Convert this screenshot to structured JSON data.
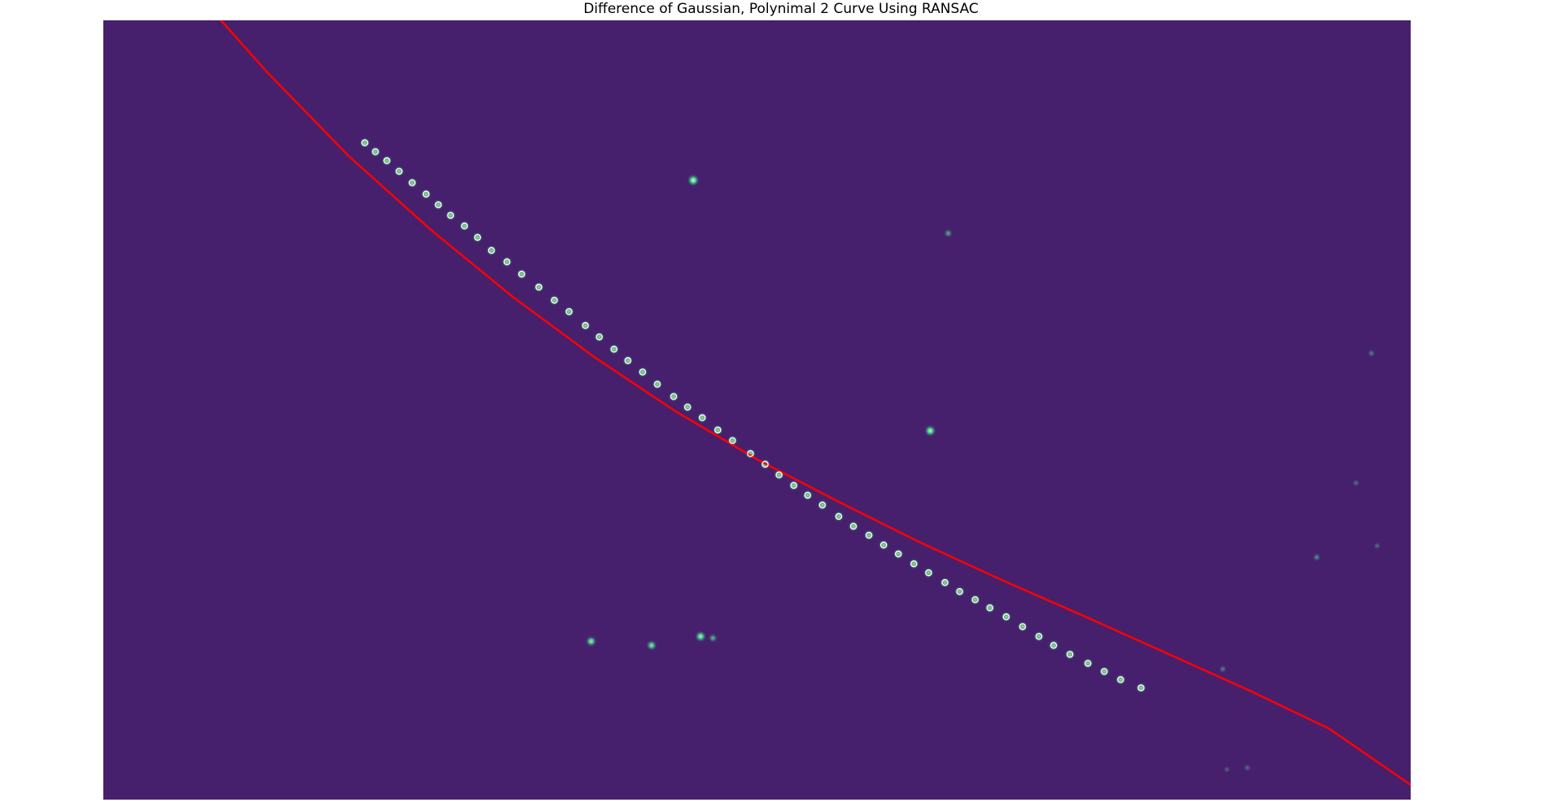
{
  "chart_data": {
    "type": "scatter",
    "title": "Difference of Gaussian, Polynimal 2 Curve Using RANSAC",
    "xlabel": "",
    "ylabel": "",
    "axes_visible": false,
    "grid": false,
    "legend": "none",
    "background_image": "dog-filtered-image-viridis",
    "xlim": [
      0,
      1600
    ],
    "ylim": [
      955,
      0
    ],
    "colors": {
      "background": "#46206c",
      "fit_curve": "#ff0000",
      "inlier_marker": "#ffffff",
      "spot_glow": "#43e0a2"
    },
    "series": [
      {
        "name": "",
        "kind": "curve",
        "model": "polynomial",
        "degree": 2,
        "x": [
          144,
          200,
          300,
          400,
          500,
          600,
          700,
          800,
          900,
          1000,
          1100,
          1200,
          1300,
          1400,
          1500,
          1600
        ],
        "y": [
          0,
          63,
          166,
          256,
          338,
          412,
          479,
          538,
          590,
          640,
          686,
          730,
          775,
          820,
          868,
          937
        ]
      },
      {
        "name": "",
        "kind": "inliers",
        "marker": "open-circle",
        "x": [
          320,
          333,
          347,
          362,
          378,
          395,
          410,
          425,
          442,
          458,
          475,
          494,
          512,
          533,
          552,
          570,
          590,
          607,
          625,
          642,
          660,
          678,
          698,
          715,
          733,
          752,
          770,
          792,
          810,
          827,
          845,
          862,
          880,
          900,
          918,
          937,
          955,
          973,
          992,
          1010,
          1030,
          1048,
          1067,
          1085,
          1105,
          1125,
          1145,
          1163,
          1183,
          1205,
          1225,
          1245,
          1270
        ],
        "y": [
          150,
          161,
          172,
          185,
          199,
          213,
          226,
          239,
          252,
          266,
          282,
          296,
          311,
          327,
          343,
          357,
          374,
          388,
          403,
          417,
          431,
          446,
          461,
          474,
          487,
          502,
          515,
          531,
          544,
          557,
          570,
          582,
          594,
          608,
          620,
          631,
          643,
          654,
          666,
          677,
          689,
          700,
          710,
          720,
          731,
          743,
          755,
          766,
          777,
          788,
          798,
          808,
          818
        ]
      }
    ],
    "bright_spots": {
      "x": [
        722,
        1012,
        731,
        597,
        671,
        746,
        1034,
        1552,
        1533,
        1485,
        1559,
        1370,
        1400,
        1375
      ],
      "y": [
        196,
        503,
        755,
        761,
        766,
        757,
        261,
        408,
        567,
        658,
        644,
        795,
        916,
        918
      ],
      "intensity": [
        1.0,
        0.95,
        0.9,
        0.85,
        0.8,
        0.55,
        0.5,
        0.35,
        0.3,
        0.4,
        0.3,
        0.35,
        0.3,
        0.25
      ]
    }
  }
}
